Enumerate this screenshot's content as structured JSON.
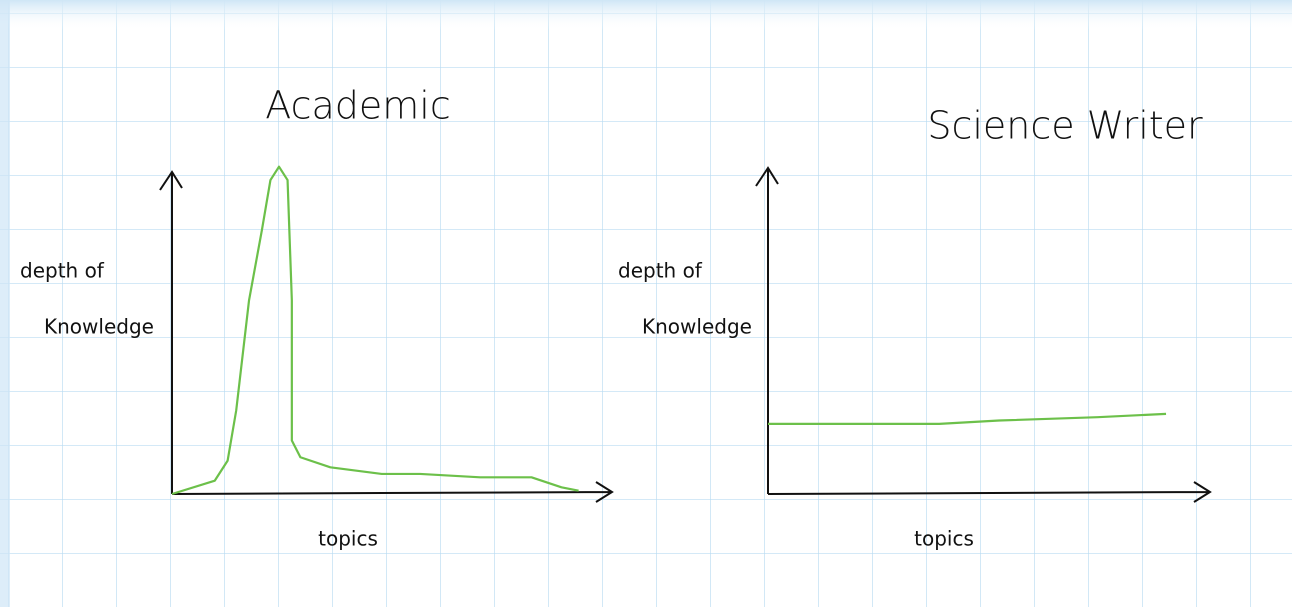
{
  "chart_data": [
    {
      "type": "line",
      "title": "Academic",
      "ylabel": [
        "depth of",
        "Knowledge"
      ],
      "xlabel": "topics",
      "xlim": [
        0,
        100
      ],
      "ylim": [
        0,
        100
      ],
      "series": [
        {
          "color": "#6cc04a",
          "x": [
            0,
            10,
            13,
            15,
            18,
            21,
            23,
            25,
            27,
            28,
            28,
            30,
            37,
            49,
            58,
            72,
            84,
            91,
            95
          ],
          "values": [
            0,
            4,
            10,
            25,
            58,
            79,
            94,
            98,
            94,
            58,
            16,
            11,
            8,
            6,
            6,
            5,
            5,
            2,
            1
          ]
        }
      ]
    },
    {
      "type": "line",
      "title": "Science Writer",
      "ylabel": [
        "depth of",
        "Knowledge"
      ],
      "xlabel": "topics",
      "xlim": [
        0,
        100
      ],
      "ylim": [
        0,
        100
      ],
      "series": [
        {
          "color": "#6cc04a",
          "x": [
            0,
            7,
            19,
            40,
            54,
            77,
            93
          ],
          "values": [
            21,
            21,
            21,
            21,
            22,
            23,
            24
          ]
        }
      ]
    }
  ]
}
